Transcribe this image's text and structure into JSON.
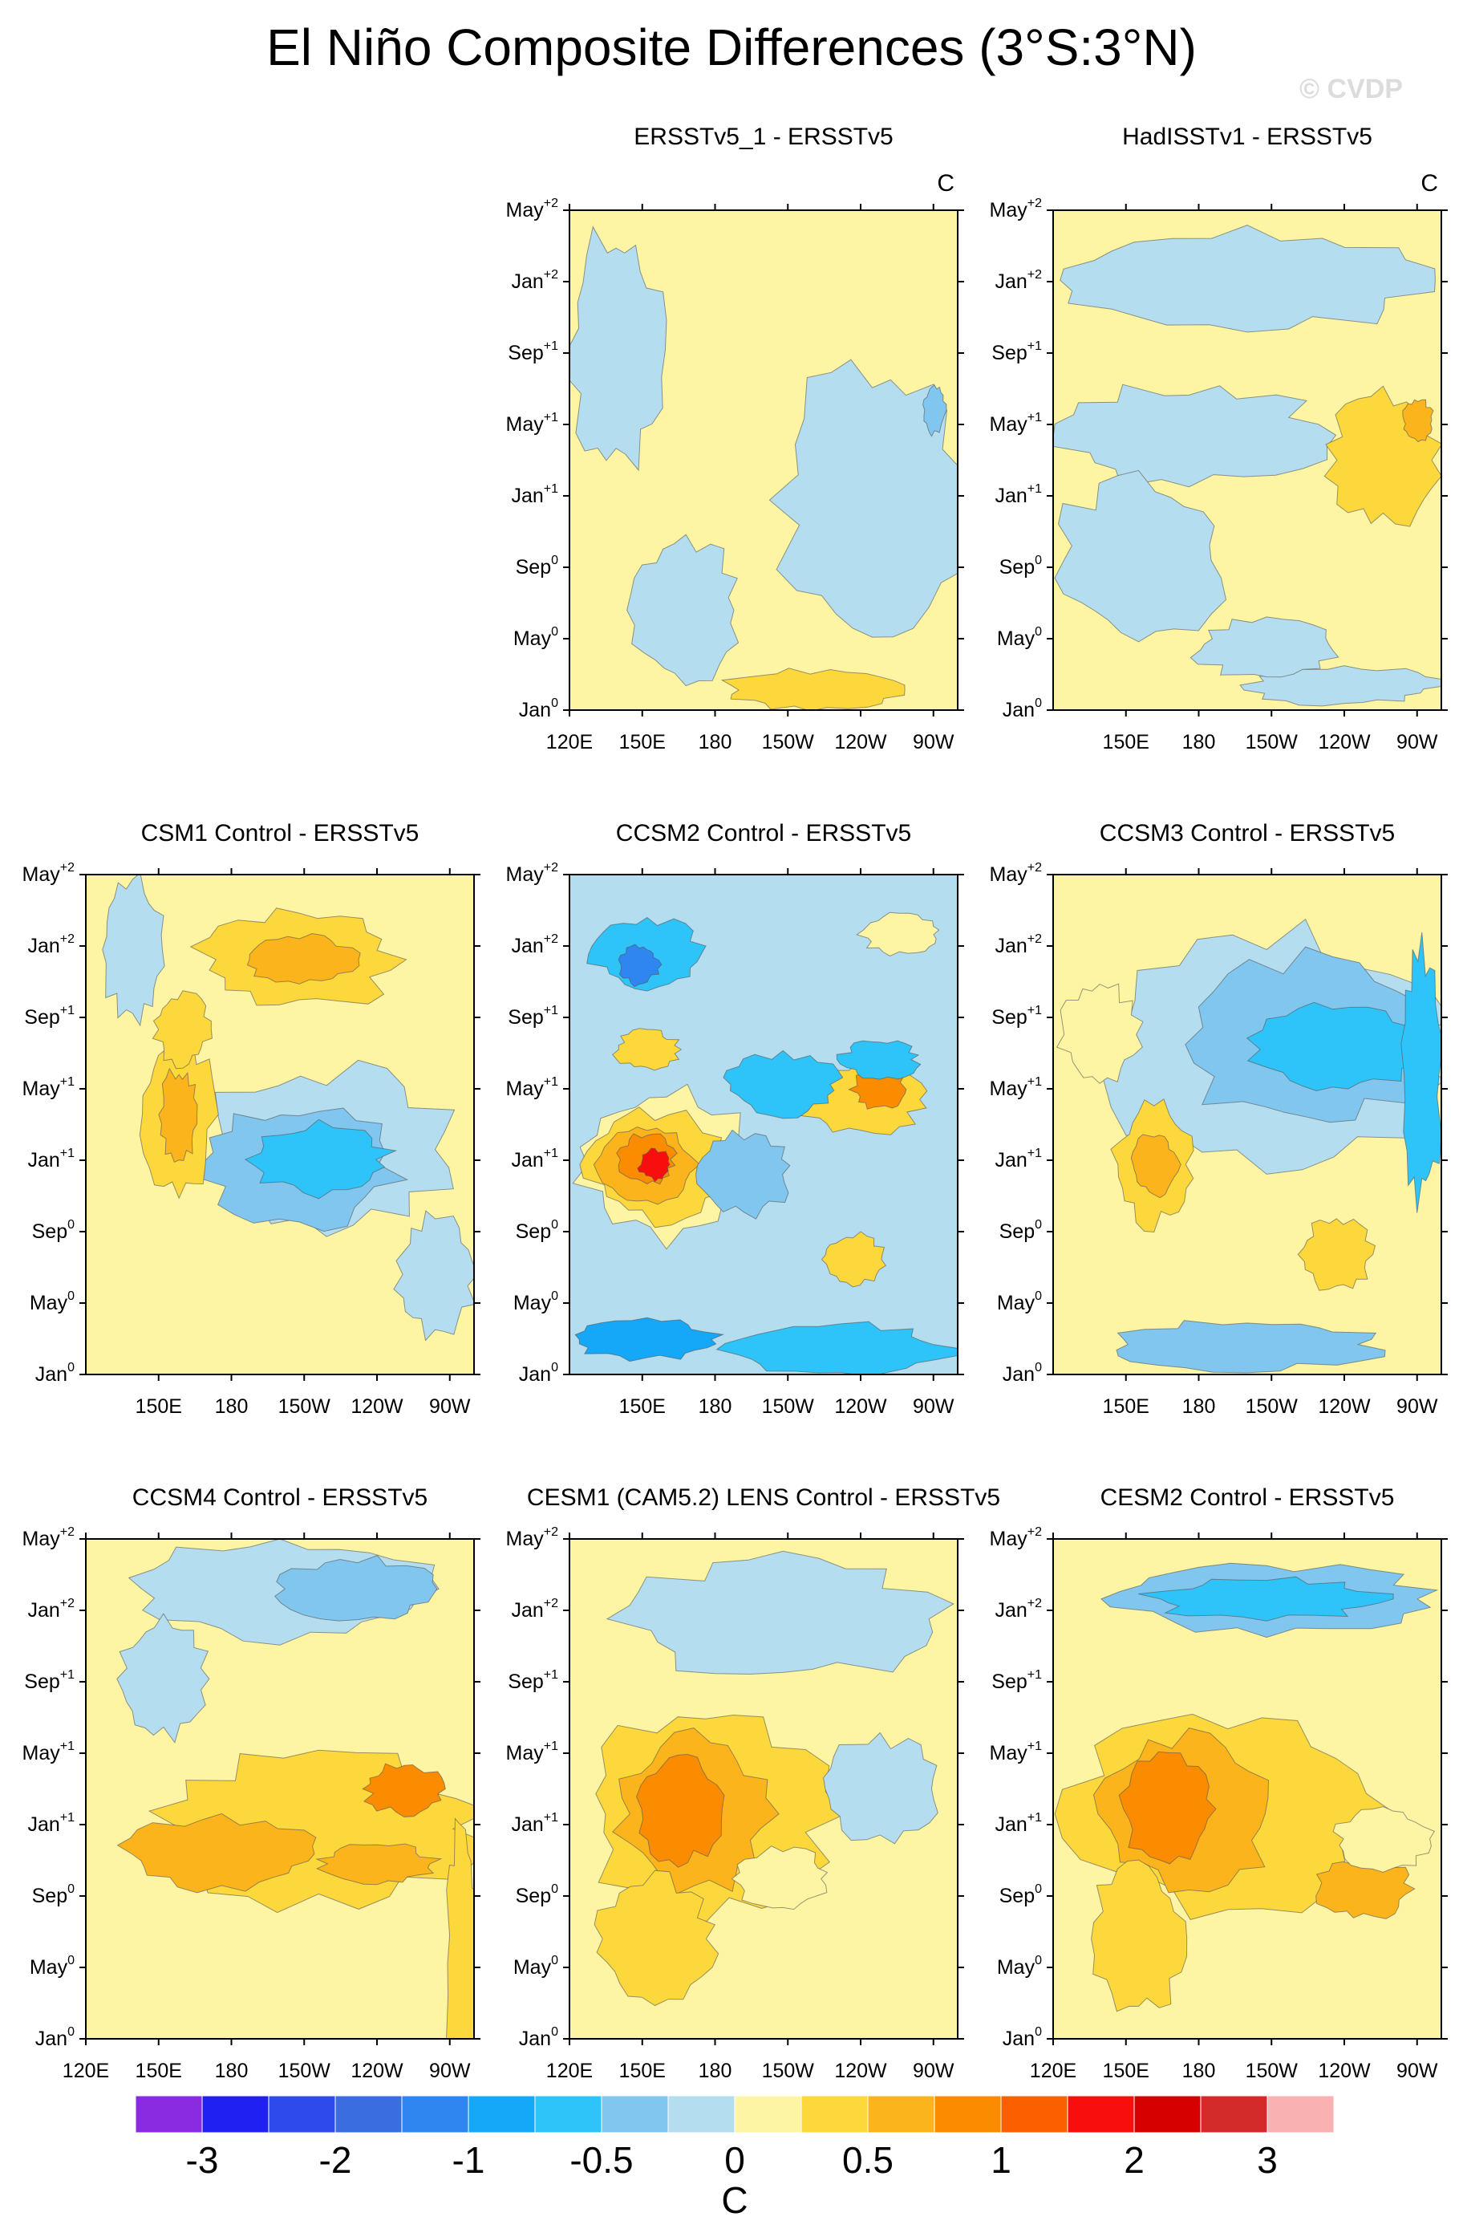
{
  "figure": {
    "title": "El Niño Composite Differences (3°S:3°N)",
    "watermark": "© CVDP"
  },
  "colorbar": {
    "colors": [
      "#8a2be2",
      "#2020f2",
      "#2e49ec",
      "#3a6ee0",
      "#2f86f0",
      "#16a8f8",
      "#2ec4fa",
      "#80c6ee",
      "#b4deef",
      "#fdf5a4",
      "#fdd83c",
      "#fcb41d",
      "#fb8c00",
      "#fa6000",
      "#f90e0e",
      "#d60000",
      "#d32a2a",
      "#fab1b1"
    ],
    "labels": [
      "-3",
      "-2",
      "-1",
      "-0.5",
      "0",
      "0.5",
      "1",
      "2",
      "3"
    ],
    "unit": "C"
  },
  "chart_data": [
    {
      "type": "heatmap",
      "title": "ERSSTv5_1 - ERSSTv5",
      "unit": "C",
      "y_ticks": [
        "Jan⁰",
        "May⁰",
        "Sep⁰",
        "Jan⁺¹",
        "May⁺¹",
        "Sep⁺¹",
        "Jan⁺²",
        "May⁺²"
      ],
      "x_ticks": [
        "120E",
        "150E",
        "180",
        "150W",
        "120W",
        "90W"
      ],
      "x_range": [
        "120E",
        "80W"
      ],
      "levels": [
        -3,
        -2.5,
        -2,
        -1.5,
        -1,
        -0.75,
        -0.5,
        -0.25,
        0,
        0.25,
        0.5,
        0.75,
        1,
        1.5,
        2,
        2.5,
        3
      ]
    },
    {
      "type": "heatmap",
      "title": "HadISSTv1 - ERSSTv5",
      "unit": "C",
      "y_ticks": [
        "Jan⁰",
        "May⁰",
        "Sep⁰",
        "Jan⁺¹",
        "May⁺¹",
        "Sep⁺¹",
        "Jan⁺²",
        "May⁺²"
      ],
      "x_ticks": [
        "150E",
        "180",
        "150W",
        "120W",
        "90W"
      ],
      "x_range": [
        "120E",
        "80W"
      ]
    },
    {
      "type": "heatmap",
      "title": "CSM1 Control - ERSSTv5",
      "y_ticks": [
        "Jan⁰",
        "May⁰",
        "Sep⁰",
        "Jan⁺¹",
        "May⁺¹",
        "Sep⁺¹",
        "Jan⁺²",
        "May⁺²"
      ],
      "x_ticks": [
        "150E",
        "180",
        "150W",
        "120W",
        "90W"
      ],
      "x_range": [
        "120E",
        "80W"
      ]
    },
    {
      "type": "heatmap",
      "title": "CCSM2 Control - ERSSTv5",
      "y_ticks": [
        "Jan⁰",
        "May⁰",
        "Sep⁰",
        "Jan⁺¹",
        "May⁺¹",
        "Sep⁺¹",
        "Jan⁺²",
        "May⁺²"
      ],
      "x_ticks": [
        "150E",
        "180",
        "150W",
        "120W",
        "90W"
      ],
      "x_range": [
        "120E",
        "80W"
      ]
    },
    {
      "type": "heatmap",
      "title": "CCSM3 Control - ERSSTv5",
      "y_ticks": [
        "Jan⁰",
        "May⁰",
        "Sep⁰",
        "Jan⁺¹",
        "May⁺¹",
        "Sep⁺¹",
        "Jan⁺²",
        "May⁺²"
      ],
      "x_ticks": [
        "150E",
        "180",
        "150W",
        "120W",
        "90W"
      ],
      "x_range": [
        "120E",
        "80W"
      ]
    },
    {
      "type": "heatmap",
      "title": "CCSM4 Control - ERSSTv5",
      "y_ticks": [
        "Jan⁰",
        "May⁰",
        "Sep⁰",
        "Jan⁺¹",
        "May⁺¹",
        "Sep⁺¹",
        "Jan⁺²",
        "May⁺²"
      ],
      "x_ticks": [
        "120E",
        "150E",
        "180",
        "150W",
        "120W",
        "90W"
      ],
      "x_range": [
        "120E",
        "80W"
      ]
    },
    {
      "type": "heatmap",
      "title": "CESM1 (CAM5.2) LENS Control - ERSSTv5",
      "y_ticks": [
        "Jan⁰",
        "May⁰",
        "Sep⁰",
        "Jan⁺¹",
        "May⁺¹",
        "Sep⁺¹",
        "Jan⁺²",
        "May⁺²"
      ],
      "x_ticks": [
        "120E",
        "150E",
        "180",
        "150W",
        "120W",
        "90W"
      ],
      "x_range": [
        "120E",
        "80W"
      ]
    },
    {
      "type": "heatmap",
      "title": "CESM2 Control - ERSSTv5",
      "y_ticks": [
        "Jan⁰",
        "May⁰",
        "Sep⁰",
        "Jan⁺¹",
        "May⁺¹",
        "Sep⁺¹",
        "Jan⁺²",
        "May⁺²"
      ],
      "x_ticks": [
        "120E",
        "150E",
        "180",
        "150W",
        "120W",
        "90W"
      ],
      "x_range": [
        "120E",
        "80W"
      ]
    }
  ],
  "panels": [
    {
      "title": "ERSSTv5_1 - ERSSTv5",
      "unit": "C",
      "x_ticks": [
        "120E",
        "150E",
        "180",
        "150W",
        "120W",
        "90W"
      ]
    },
    {
      "title": "HadISSTv1 - ERSSTv5",
      "unit": "C",
      "x_ticks": [
        "150E",
        "180",
        "150W",
        "120W",
        "90W"
      ]
    },
    {
      "title": "CSM1 Control - ERSSTv5",
      "x_ticks": [
        "150E",
        "180",
        "150W",
        "120W",
        "90W"
      ]
    },
    {
      "title": "CCSM2 Control - ERSSTv5",
      "x_ticks": [
        "150E",
        "180",
        "150W",
        "120W",
        "90W"
      ]
    },
    {
      "title": "CCSM3 Control - ERSSTv5",
      "x_ticks": [
        "150E",
        "180",
        "150W",
        "120W",
        "90W"
      ]
    },
    {
      "title": "CCSM4 Control - ERSSTv5",
      "x_ticks": [
        "120E",
        "150E",
        "180",
        "150W",
        "120W",
        "90W"
      ]
    },
    {
      "title": "CESM1 (CAM5.2) LENS Control - ERSSTv5",
      "x_ticks": [
        "120E",
        "150E",
        "180",
        "150W",
        "120W",
        "90W"
      ]
    },
    {
      "title": "CESM2 Control - ERSSTv5",
      "x_ticks": [
        "120E",
        "150E",
        "180",
        "150W",
        "120W",
        "90W"
      ]
    }
  ],
  "y_axis": {
    "labels": [
      {
        "month": "Jan",
        "year": "0"
      },
      {
        "month": "May",
        "year": "0"
      },
      {
        "month": "Sep",
        "year": "0"
      },
      {
        "month": "Jan",
        "year": "+1"
      },
      {
        "month": "May",
        "year": "+1"
      },
      {
        "month": "Sep",
        "year": "+1"
      },
      {
        "month": "Jan",
        "year": "+2"
      },
      {
        "month": "May",
        "year": "+2"
      }
    ]
  }
}
